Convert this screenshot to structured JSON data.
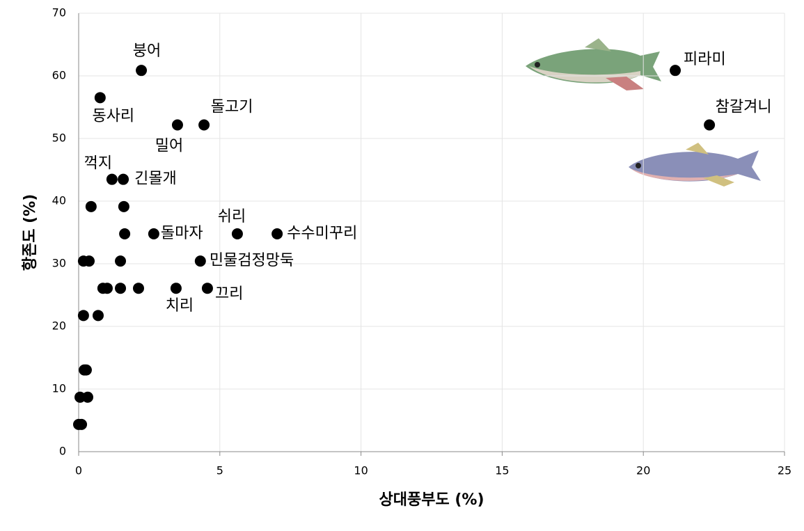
{
  "chart_data": {
    "type": "scatter",
    "x_label": "상대풍부도 (%)",
    "y_label": "항존도 (%)",
    "xlim": [
      0,
      25
    ],
    "xticks": [
      0,
      5,
      10,
      15,
      20,
      25
    ],
    "ylim": [
      0,
      70
    ],
    "yticks": [
      0,
      10,
      20,
      30,
      40,
      50,
      60,
      70
    ],
    "grid": true,
    "color": "#000000",
    "x": [
      2.22,
      0.76,
      4.44,
      3.5,
      1.18,
      1.58,
      2.66,
      5.62,
      7.03,
      4.31,
      3.45,
      4.56,
      21.13,
      22.34,
      0.44,
      1.6,
      1.63,
      0.17,
      0.37,
      1.48,
      0.86,
      1.01,
      1.48,
      2.12,
      0.17,
      0.69,
      0.2,
      0.27,
      0.05,
      0.32,
      0.0,
      0.1
    ],
    "values": [
      60.87,
      56.52,
      52.17,
      52.17,
      43.48,
      43.48,
      34.78,
      34.78,
      34.78,
      30.43,
      26.09,
      26.09,
      60.87,
      52.17,
      39.13,
      39.13,
      34.78,
      30.43,
      30.43,
      30.43,
      26.09,
      26.09,
      26.09,
      26.09,
      21.74,
      21.74,
      13.04,
      13.04,
      8.7,
      8.7,
      4.35,
      4.35
    ],
    "point_labels": [
      "붕어",
      "동사리",
      "돌고기",
      "밀어",
      "꺽지",
      "긴몰개",
      "돌마자",
      "쉬리",
      "수수미꾸리",
      "민물검정망둑",
      "치리",
      "끄리",
      "피라미",
      "참갈겨니",
      null,
      null,
      null,
      null,
      null,
      null,
      null,
      null,
      null,
      null,
      null,
      null,
      null,
      null,
      null,
      null,
      null,
      null
    ]
  }
}
